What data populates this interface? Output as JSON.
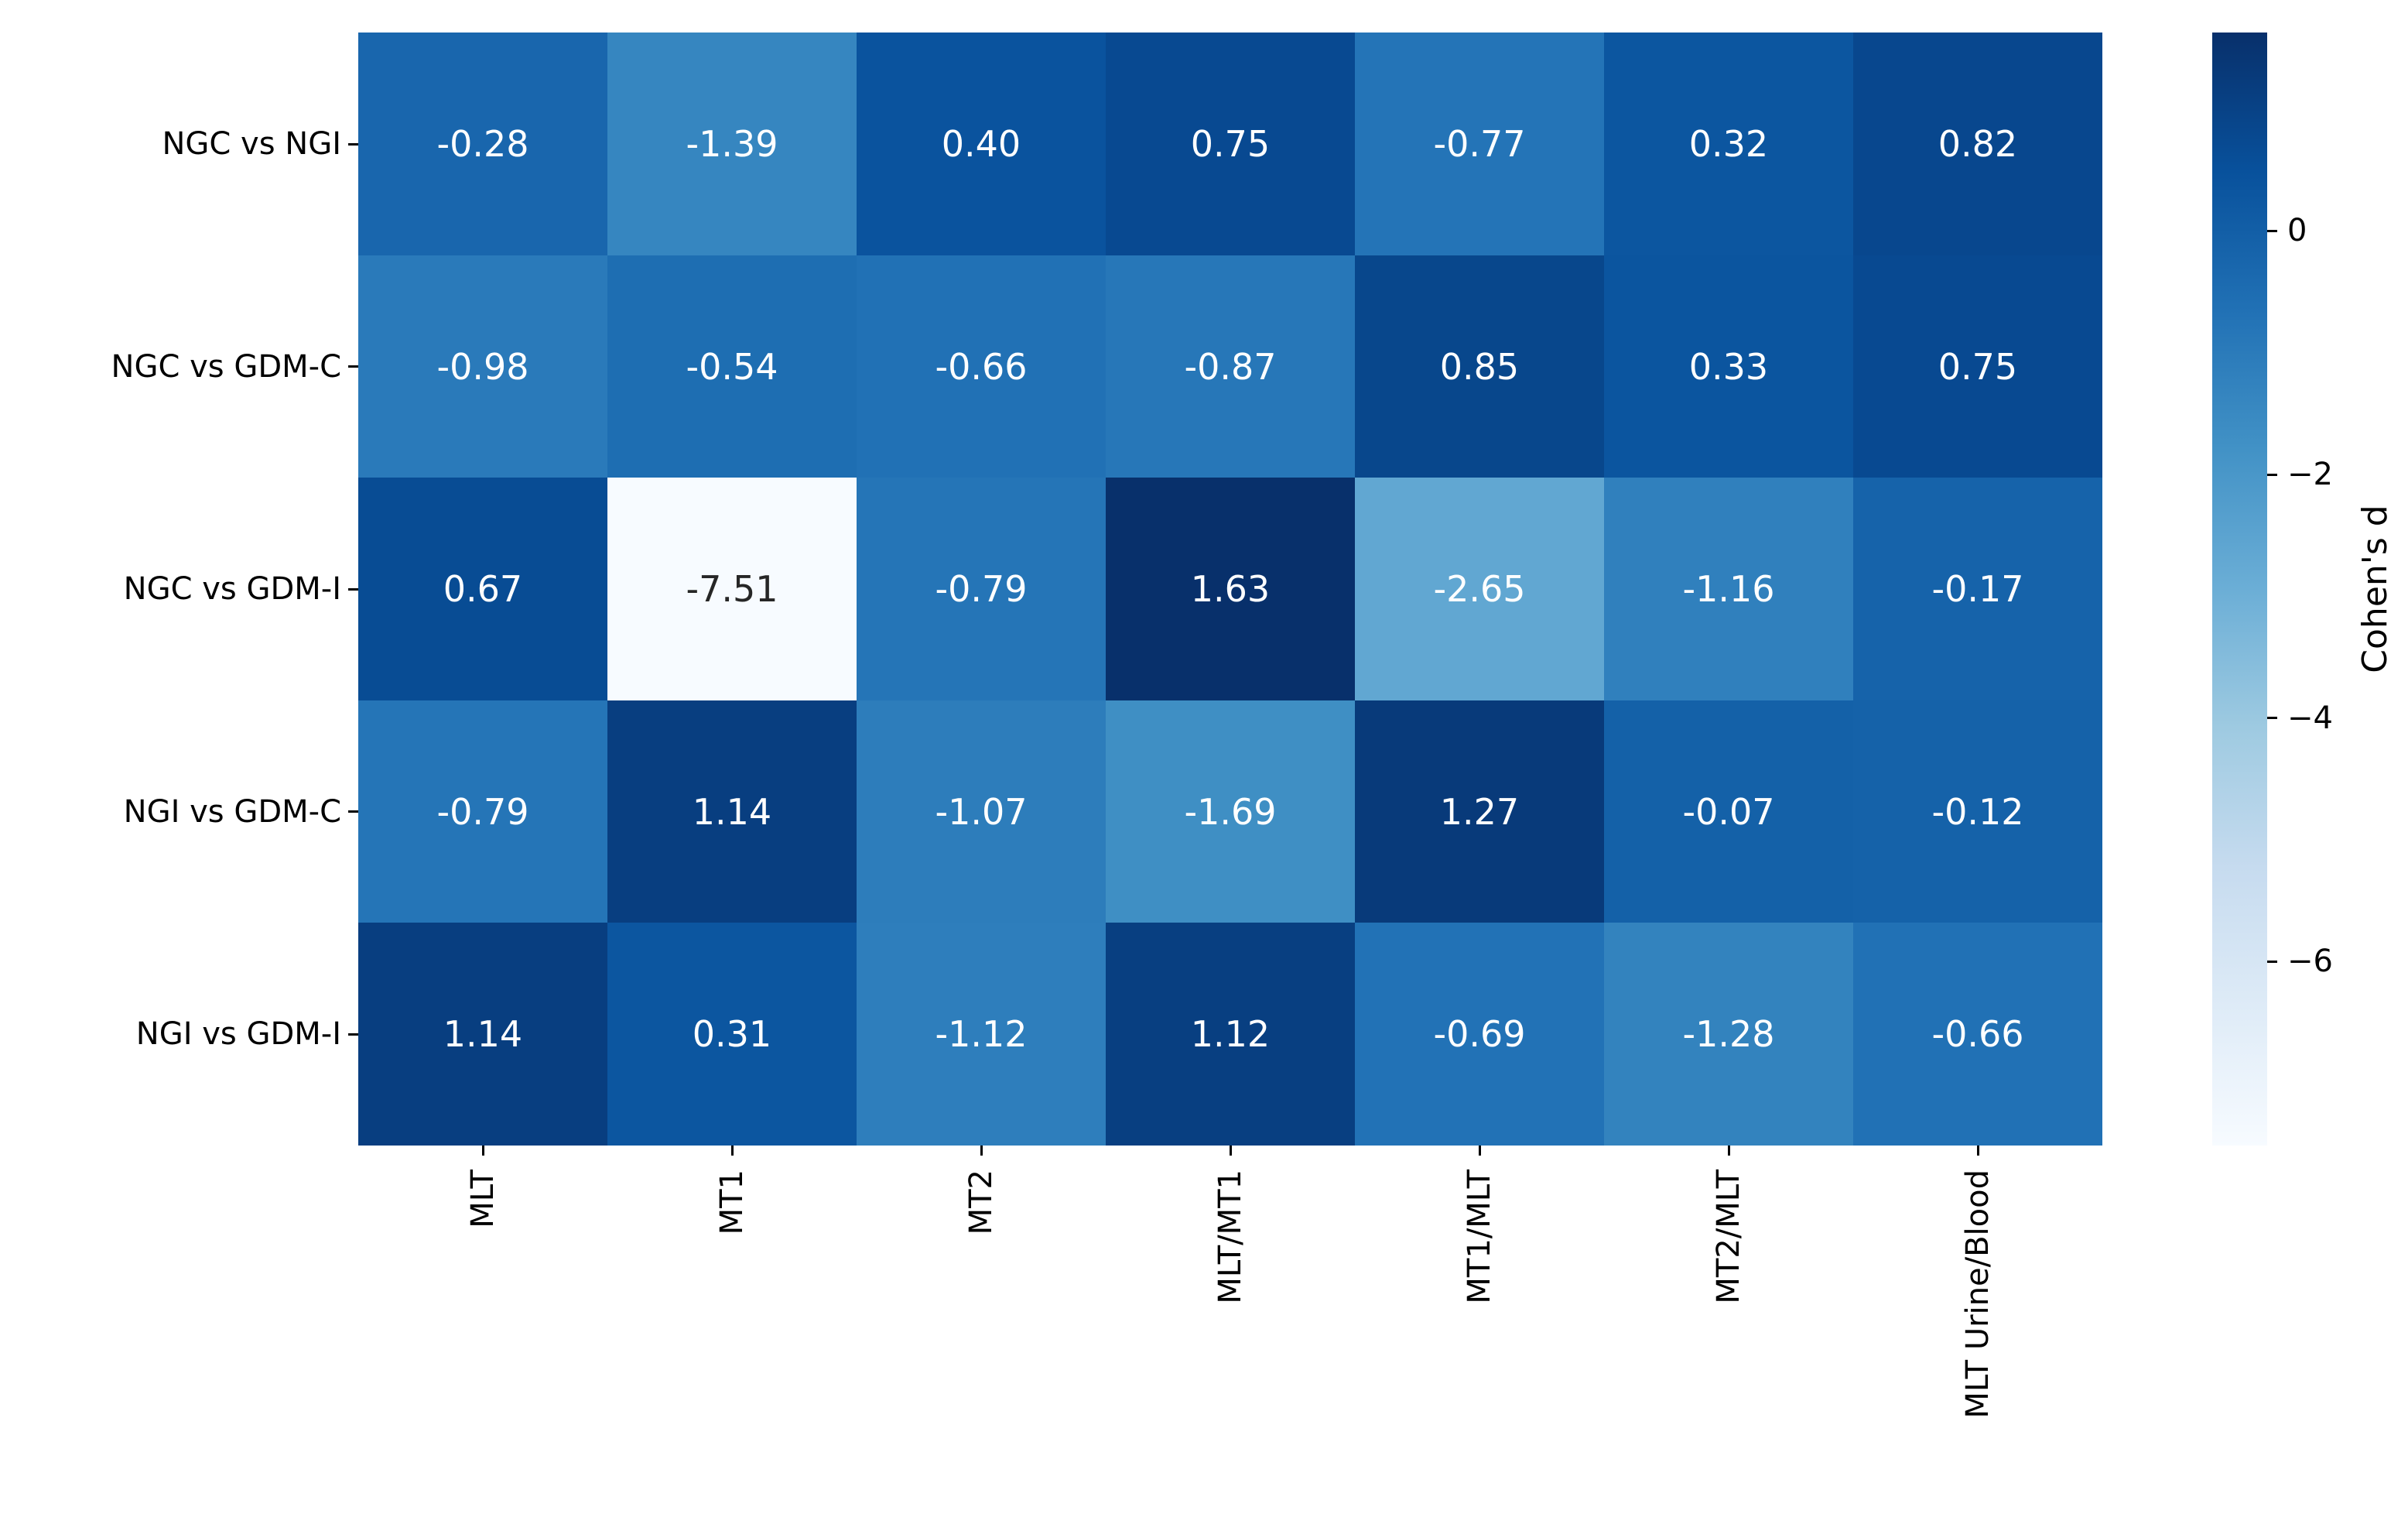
{
  "chart_data": {
    "type": "heatmap",
    "title": "",
    "rows": [
      "NGC vs NGI",
      "NGC vs GDM-C",
      "NGC vs GDM-I",
      "NGI vs GDM-C",
      "NGI vs GDM-I"
    ],
    "columns": [
      "MLT",
      "MT1",
      "MT2",
      "MLT/MT1",
      "MT1/MLT",
      "MT2/MLT",
      "MLT Urine/Blood"
    ],
    "values": [
      [
        -0.28,
        -1.39,
        0.4,
        0.75,
        -0.77,
        0.32,
        0.82
      ],
      [
        -0.98,
        -0.54,
        -0.66,
        -0.87,
        0.85,
        0.33,
        0.75
      ],
      [
        0.67,
        -7.51,
        -0.79,
        1.63,
        -2.65,
        -1.16,
        -0.17
      ],
      [
        -0.79,
        1.14,
        -1.07,
        -1.69,
        1.27,
        -0.07,
        -0.12
      ],
      [
        1.14,
        0.31,
        -1.12,
        1.12,
        -0.69,
        -1.28,
        -0.66
      ]
    ],
    "value_format_decimals": 2,
    "colorbar": {
      "label": "Cohen's d",
      "tick_values": [
        0,
        -2,
        -4,
        -6
      ],
      "tick_labels": [
        "0",
        "−2",
        "−4",
        "−6"
      ],
      "vmin": -7.51,
      "vmax": 1.63,
      "colormap": "Blues",
      "colormap_stops": [
        "#f7fbff",
        "#deebf7",
        "#c6dbef",
        "#9ecae1",
        "#6baed6",
        "#4292c6",
        "#2171b5",
        "#08519c",
        "#08306b"
      ]
    },
    "annotation_text_light": "#ffffff",
    "annotation_text_dark": "#262626",
    "grid": false,
    "legend_position": "right-colorbar"
  }
}
